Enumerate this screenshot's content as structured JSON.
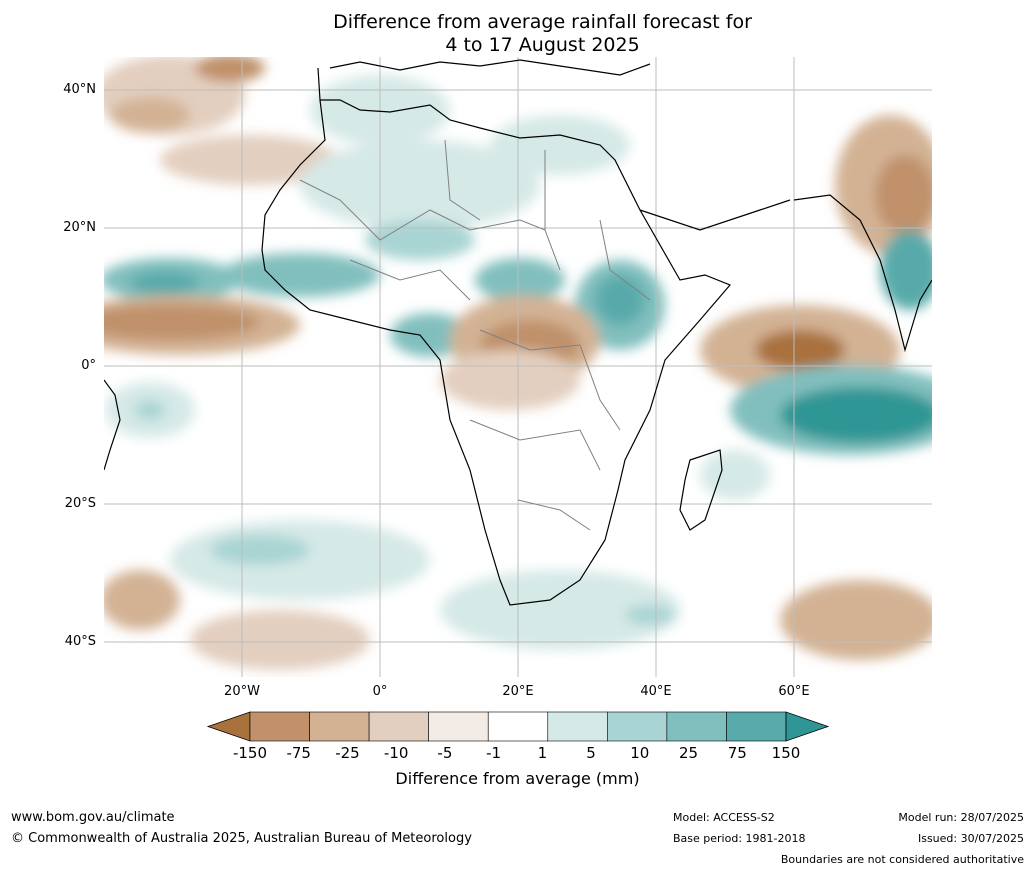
{
  "title": {
    "line1": "Difference from average rainfall forecast for",
    "line2": "4 to 17 August 2025"
  },
  "map": {
    "lat_labels": [
      "40°N",
      "20°N",
      "0°",
      "20°S",
      "40°S"
    ],
    "lon_labels": [
      "20°W",
      "0°",
      "20°E",
      "40°E",
      "60°E"
    ]
  },
  "colorbar": {
    "ticks": [
      "-150",
      "-75",
      "-25",
      "-10",
      "-5",
      "-1",
      "1",
      "5",
      "10",
      "25",
      "75",
      "150"
    ],
    "colors": [
      "#a9713c",
      "#c0916a",
      "#d3b294",
      "#e3cfbf",
      "#f3ebe6",
      "#ffffff",
      "#d5e9e7",
      "#a8d4d3",
      "#81bfbe",
      "#59aaaa",
      "#2e9694"
    ],
    "label": "Difference from average (mm)"
  },
  "footer": {
    "website": "www.bom.gov.au/climate",
    "copyright": "© Commonwealth of Australia 2025, Australian Bureau of Meteorology",
    "model": "Model: ACCESS-S2",
    "base_period": "Base period: 1981-2018",
    "model_run": "Model run: 28/07/2025",
    "issued": "Issued: 30/07/2025",
    "disclaimer": "Boundaries are not considered authoritative"
  }
}
